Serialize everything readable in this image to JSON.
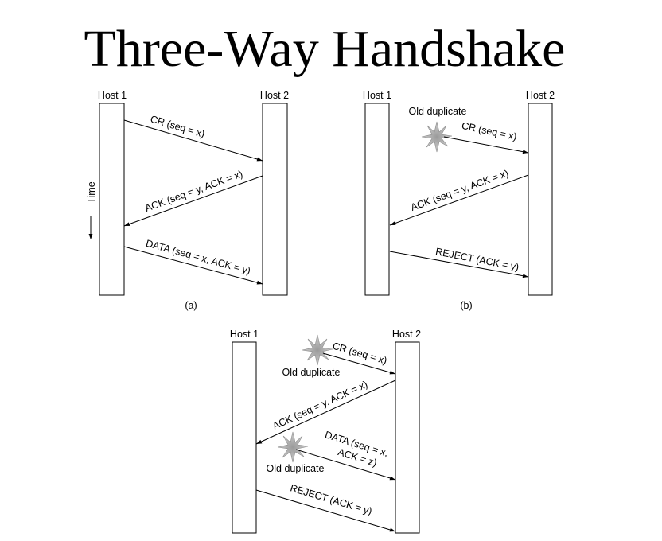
{
  "title": "Three-Way Handshake",
  "panel_a": {
    "host1": "Host 1",
    "host2": "Host 2",
    "caption": "(a)",
    "time_label": "Time",
    "msg1": "CR (seq = x)",
    "msg2": "ACK (seq = y, ACK = x)",
    "msg3": "DATA (seq = x, ACK = y)"
  },
  "panel_b": {
    "host1": "Host 1",
    "host2": "Host 2",
    "caption": "(b)",
    "old_duplicate": "Old duplicate",
    "msg1": "CR (seq = x)",
    "msg2": "ACK (seq = y, ACK = x)",
    "msg3": "REJECT (ACK = y)"
  },
  "panel_c": {
    "host1": "Host 1",
    "host2": "Host 2",
    "old_duplicate_1": "Old duplicate",
    "old_duplicate_2": "Old duplicate",
    "msg1": "CR (seq = x)",
    "msg2": "ACK (seq = y, ACK = x)",
    "msg3_line1": "DATA (seq = x,",
    "msg3_line2": "ACK = z)",
    "msg4": "REJECT (ACK = y)"
  }
}
